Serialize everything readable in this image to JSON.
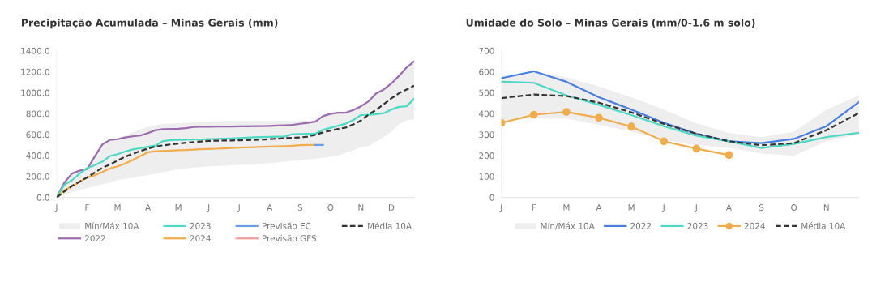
{
  "chart_data": [
    {
      "type": "line",
      "title": "Precipitação Acumulada – Minas Gerais (mm)",
      "legend": "bottom",
      "grid": false,
      "categories": [
        "J",
        null,
        null,
        null,
        "F",
        null,
        null,
        null,
        "M",
        null,
        null,
        null,
        "A",
        null,
        null,
        null,
        "M",
        null,
        null,
        null,
        "J",
        null,
        null,
        null,
        "J",
        null,
        null,
        null,
        "A",
        null,
        null,
        null,
        "S",
        null,
        null,
        null,
        "O",
        null,
        null,
        null,
        "N",
        null,
        null,
        null,
        "D",
        null,
        null,
        null
      ],
      "ylim": [
        0,
        1400
      ],
      "yticks": [
        {
          "value": 0,
          "label": "0.0"
        },
        {
          "value": 200,
          "label": "200.0"
        },
        {
          "value": 400,
          "label": "400.0"
        },
        {
          "value": 600,
          "label": "600.0"
        },
        {
          "value": 800,
          "label": "800.0"
        },
        {
          "value": 1000,
          "label": "1000.0"
        },
        {
          "value": 1200,
          "label": "1200.0"
        },
        {
          "value": 1400,
          "label": "1400.0"
        }
      ],
      "series": [
        {
          "name": "Mín/Máx 10A",
          "color": "#eeeeee",
          "values": [
            null,
            null,
            null,
            null,
            null,
            null,
            null,
            null,
            null,
            null,
            null,
            null,
            null,
            null,
            null,
            null,
            null,
            null,
            null,
            null,
            null,
            null,
            null,
            null,
            null,
            null,
            null,
            null,
            null,
            null,
            null,
            null,
            null,
            null,
            null,
            null,
            null,
            null,
            null,
            null,
            null,
            null,
            null,
            null,
            null,
            null,
            null,
            null
          ],
          "lower": [
            0,
            25,
            50,
            70,
            90,
            107,
            124,
            141,
            165,
            176,
            188,
            201,
            214,
            228,
            242,
            256,
            270,
            277,
            284,
            291,
            296,
            299,
            303,
            306,
            310,
            313,
            317,
            321,
            327,
            334,
            341,
            348,
            355,
            362,
            369,
            378,
            387,
            401,
            424,
            450,
            480,
            492,
            535,
            578,
            630,
            700,
            735,
            745
          ],
          "upper": [
            0,
            150,
            235,
            260,
            280,
            400,
            510,
            552,
            565,
            590,
            620,
            650,
            675,
            690,
            700,
            705,
            708,
            712,
            716,
            720,
            725,
            728,
            730,
            731,
            732,
            732,
            732,
            732,
            732,
            732,
            732,
            732,
            732,
            732,
            732,
            775,
            799,
            809,
            812,
            840,
            875,
            920,
            993,
            1030,
            1088,
            1160,
            1240,
            1300
          ]
        },
        {
          "name": "2022",
          "color": "#9b6bb0",
          "values": [
            0,
            140,
            228,
            255,
            270,
            390,
            505,
            549,
            556,
            572,
            583,
            591,
            614,
            642,
            651,
            653,
            655,
            662,
            672,
            674,
            675,
            676,
            677,
            677,
            678,
            679,
            680,
            681,
            683,
            686,
            689,
            693,
            703,
            711,
            723,
            775,
            799,
            809,
            809,
            834,
            870,
            917,
            993,
            1030,
            1088,
            1160,
            1240,
            1300
          ]
        },
        {
          "name": "2023",
          "color": "#4fd8c4",
          "values": [
            0,
            120,
            163,
            226,
            280,
            309,
            341,
            395,
            413,
            438,
            458,
            471,
            484,
            496,
            538,
            547,
            549,
            551,
            552,
            554,
            556,
            558,
            560,
            563,
            567,
            571,
            574,
            576,
            578,
            580,
            582,
            604,
            606,
            607,
            608,
            645,
            665,
            685,
            704,
            740,
            786,
            789,
            794,
            804,
            839,
            864,
            870,
            943
          ]
        },
        {
          "name": "2024",
          "color": "#f0ad4e",
          "values": [
            0,
            68,
            105,
            148,
            191,
            211,
            243,
            277,
            297,
            323,
            356,
            396,
            431,
            440,
            443,
            447,
            450,
            453,
            457,
            460,
            462,
            465,
            468,
            472,
            475,
            478,
            480,
            483,
            485,
            487,
            490,
            493,
            498,
            500,
            501,
            null,
            null,
            null,
            null,
            null,
            null,
            null,
            null,
            null,
            null,
            null,
            null,
            null
          ]
        },
        {
          "name": "Previsão EC",
          "color": "#6a9fe8",
          "values": [
            null,
            null,
            null,
            null,
            null,
            null,
            null,
            null,
            null,
            null,
            null,
            null,
            null,
            null,
            null,
            null,
            null,
            null,
            null,
            null,
            null,
            null,
            null,
            null,
            null,
            null,
            null,
            null,
            null,
            null,
            null,
            null,
            null,
            null,
            501,
            501,
            null,
            null,
            null,
            null,
            null,
            null,
            null,
            null,
            null,
            null,
            null,
            null
          ]
        },
        {
          "name": "Previsão GFS",
          "color": "#f59a9a",
          "values": [
            null,
            null,
            null,
            null,
            null,
            null,
            null,
            null,
            null,
            null,
            null,
            null,
            null,
            null,
            null,
            null,
            null,
            null,
            null,
            null,
            null,
            null,
            null,
            null,
            null,
            null,
            null,
            null,
            null,
            null,
            null,
            null,
            null,
            null,
            null,
            null,
            null,
            null,
            null,
            null,
            null,
            null,
            null,
            null,
            null,
            null,
            null,
            null
          ]
        },
        {
          "name": "Média 10A",
          "color": "#333333",
          "line_style": "dashed",
          "values": [
            0,
            56,
            110,
            150,
            191,
            237,
            283,
            314,
            351,
            389,
            415,
            443,
            466,
            486,
            497,
            506,
            514,
            522,
            528,
            534,
            540,
            541,
            543,
            544,
            546,
            548,
            549,
            551,
            556,
            561,
            565,
            569,
            573,
            580,
            598,
            621,
            638,
            654,
            667,
            697,
            734,
            790,
            836,
            889,
            946,
            994,
            1030,
            1066
          ]
        }
      ]
    },
    {
      "type": "line",
      "title": "Umidade do Solo – Minas Gerais (mm/0-1.6 m solo)",
      "legend": "bottom",
      "grid": false,
      "categories": [
        "J",
        "F",
        "M",
        "A",
        "M",
        "J",
        "J",
        "A",
        "S",
        "O",
        "N",
        null
      ],
      "ylim": [
        0,
        700
      ],
      "yticks": [
        0,
        100,
        200,
        300,
        400,
        500,
        600,
        700
      ],
      "series": [
        {
          "name": "Mín/Máx 10A",
          "color": "#eeeeee",
          "values": [
            null,
            null,
            null,
            null,
            null,
            null,
            null,
            null,
            null,
            null,
            null,
            null
          ],
          "lower": [
            366,
            377,
            377,
            347,
            314,
            275,
            249,
            236,
            209,
            199,
            268,
            301
          ],
          "upper": [
            582,
            602,
            573,
            530,
            478,
            419,
            353,
            308,
            288,
            314,
            419,
            487
          ]
        },
        {
          "name": "2022",
          "color": "#4a7fe0",
          "values": [
            569,
            602,
            552,
            478,
            419,
            356,
            304,
            268,
            259,
            279,
            340,
            455
          ]
        },
        {
          "name": "2023",
          "color": "#4fd8c4",
          "values": [
            552,
            547,
            487,
            442,
            393,
            340,
            295,
            268,
            236,
            255,
            288,
            308
          ]
        },
        {
          "name": "2024",
          "color": "#f0ad4e",
          "marker": "circle",
          "values": [
            356,
            395,
            408,
            380,
            338,
            268,
            233,
            202,
            null,
            null,
            null,
            null
          ]
        },
        {
          "name": "Média 10A",
          "color": "#333333",
          "line_style": "dashed",
          "values": [
            474,
            491,
            484,
            452,
            406,
            351,
            304,
            268,
            249,
            259,
            321,
            403
          ]
        }
      ]
    }
  ]
}
